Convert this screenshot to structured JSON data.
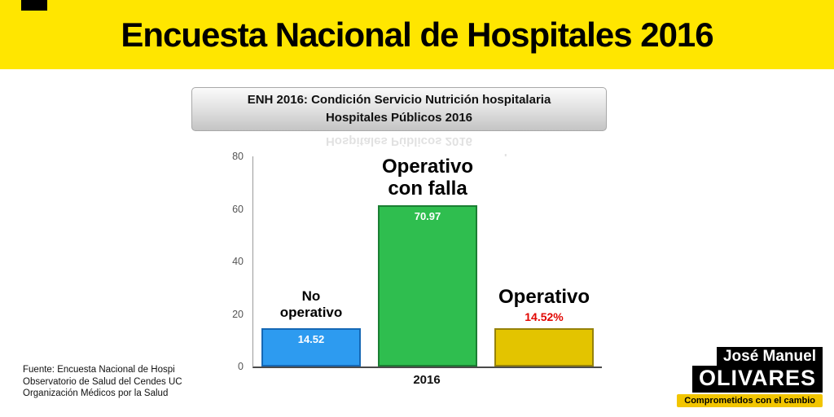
{
  "colors": {
    "banner_bg": "#FFE600",
    "tagline_bg": "#F2C500",
    "pct_red": "#E10600"
  },
  "banner": {
    "title": "Encuesta Nacional de Hospitales 2016"
  },
  "chart_header": {
    "line1": "ENH 2016:  Condición Servicio Nutrición hospitalaria",
    "line2": "Hospitales Públicos 2016"
  },
  "chart_data": {
    "type": "bar",
    "title": "ENH 2016: Condición Servicio Nutrición hospitalaria Hospitales Públicos 2016",
    "categories": [
      "No operativo",
      "Operativo con falla",
      "Operativo"
    ],
    "values": [
      14.52,
      70.97,
      14.52
    ],
    "inside_labels": [
      "14.52",
      "70.97",
      ""
    ],
    "above_label_bar3": "14.52%",
    "bar_colors": [
      "#2D9BF0",
      "#2FBE4F",
      "#E3C400"
    ],
    "bar_borders": [
      "#1668b5",
      "#1b7e33",
      "#96820a"
    ],
    "xlabel": "2016",
    "ylabel": "",
    "ylim": [
      0,
      80
    ],
    "yticks": [
      0,
      20,
      40,
      60,
      80
    ],
    "grid": false,
    "legend": false
  },
  "source": {
    "line1": "Fuente: Encuesta Nacional de Hospi",
    "line2": "Observatorio de Salud del Cendes UC",
    "line3": "Organización Médicos por la Salud"
  },
  "logo": {
    "first_name": "José Manuel",
    "last_name": "OLIVARES",
    "tagline": "Comprometidos con el cambio"
  }
}
